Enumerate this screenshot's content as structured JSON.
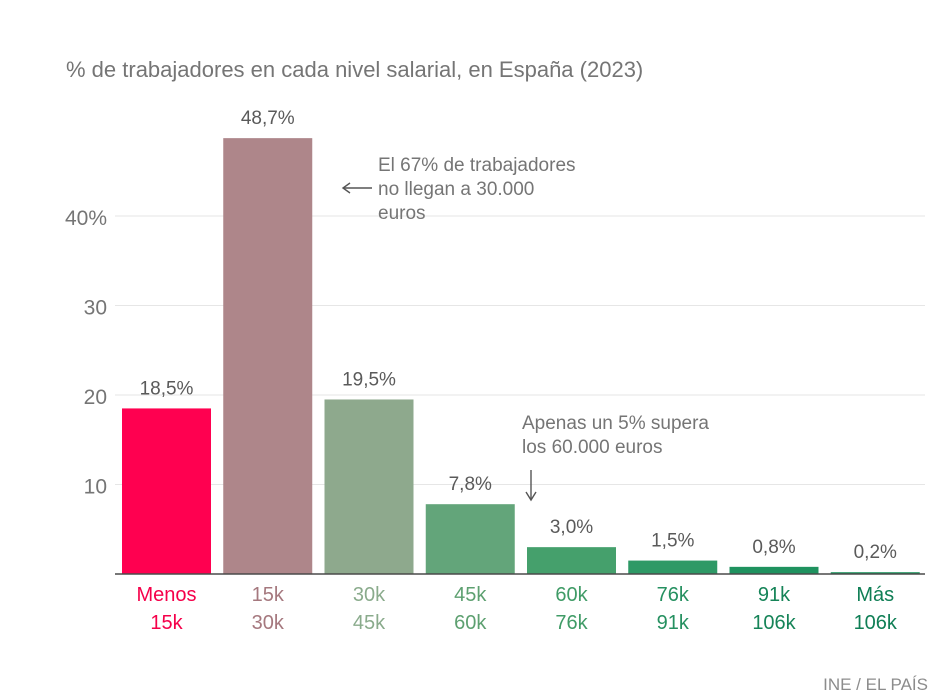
{
  "chart_data": {
    "type": "bar",
    "title": "% de trabajadores en cada nivel salarial, en España (2023)",
    "xlabel": "",
    "ylabel": "",
    "ylim": [
      0,
      50
    ],
    "yticks": [
      {
        "value": 10,
        "label": "10"
      },
      {
        "value": 20,
        "label": "20"
      },
      {
        "value": 30,
        "label": "30"
      },
      {
        "value": 40,
        "label": "40%"
      }
    ],
    "grid": true,
    "categories": [
      {
        "line1": "Menos",
        "line2": "15k",
        "color": "#f5004a"
      },
      {
        "line1": "15k",
        "line2": "30k",
        "color": "#a5787e"
      },
      {
        "line1": "30k",
        "line2": "45k",
        "color": "#8aab8c"
      },
      {
        "line1": "45k",
        "line2": "60k",
        "color": "#5da070"
      },
      {
        "line1": "60k",
        "line2": "76k",
        "color": "#3f9b66"
      },
      {
        "line1": "76k",
        "line2": "91k",
        "color": "#259060"
      },
      {
        "line1": "91k",
        "line2": "106k",
        "color": "#168458"
      },
      {
        "line1": "Más",
        "line2": "106k",
        "color": "#0f7e55"
      }
    ],
    "bar_colors": [
      "#ff0050",
      "#ae868a",
      "#8ea98d",
      "#63a57a",
      "#45a06c",
      "#2e9966",
      "#1f925f",
      "#18915a"
    ],
    "values": [
      18.5,
      48.7,
      19.5,
      7.8,
      3.0,
      1.5,
      0.8,
      0.2
    ],
    "value_labels": [
      "18,5%",
      "48,7%",
      "19,5%",
      "7,8%",
      "3,0%",
      "1,5%",
      "0,8%",
      "0,2%"
    ],
    "annotations": [
      {
        "lines": [
          "El 67% de trabajadores",
          "no llegan a 30.000",
          "euros"
        ],
        "arrow": "left"
      },
      {
        "lines": [
          "Apenas un 5% supera",
          "los 60.000 euros"
        ],
        "arrow": "down"
      }
    ]
  },
  "source": "INE / EL PAÍS",
  "colors": {
    "text": "#757575",
    "axis": "#4a4a4a",
    "grid": "#e6e6e6",
    "value_label": "#5a5a5a"
  }
}
